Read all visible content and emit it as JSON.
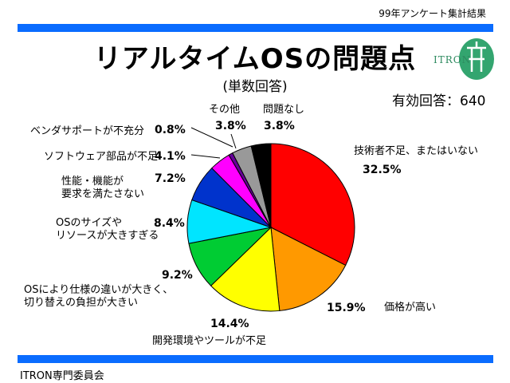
{
  "header_note": "99年アンケート集計結果",
  "title": "リアルタイムOSの問題点",
  "subtitle": "(単数回答)",
  "total_responses": "有効回答：640",
  "footer": "ITRON専門委員会",
  "logo_text": "ITRON",
  "colors": {
    "bars": "#0a6cff",
    "logo": "#33a56f"
  },
  "chart_data": {
    "type": "pie",
    "title": "リアルタイムOSの問題点",
    "slices": [
      {
        "label": "技術者不足、またはいない",
        "value": 32.5,
        "display": "32.5%",
        "color": "#ff0000"
      },
      {
        "label": "価格が高い",
        "value": 15.9,
        "display": "15.9%",
        "color": "#ff9900"
      },
      {
        "label": "開発環境やツールが不足",
        "value": 14.4,
        "display": "14.4%",
        "color": "#ffff00"
      },
      {
        "label": "OSにより仕様の違いが大きく、切り替えの負担が大きい",
        "value": 9.2,
        "display": "9.2%",
        "color": "#00cc33"
      },
      {
        "label": "OSのサイズやリソースが大きすぎる",
        "value": 8.4,
        "display": "8.4%",
        "color": "#00e5ff"
      },
      {
        "label": "性能・機能が要求を満たさない",
        "value": 7.2,
        "display": "7.2%",
        "color": "#0033cc"
      },
      {
        "label": "ソフトウェア部品が不足",
        "value": 4.1,
        "display": "4.1%",
        "color": "#ff00ff"
      },
      {
        "label": "ベンダサポートが不充分",
        "value": 0.8,
        "display": "0.8%",
        "color": "#660099"
      },
      {
        "label": "その他",
        "value": 3.8,
        "display": "3.8%",
        "color": "#999999"
      },
      {
        "label": "問題なし",
        "value": 3.8,
        "display": "3.8%",
        "color": "#000000"
      }
    ],
    "label_lines": {
      "tech": [
        "技術者不足、またはいない"
      ],
      "price": [
        "価格が高い"
      ],
      "tools": [
        "開発環境やツールが不足"
      ],
      "spec": [
        "OSにより仕様の違いが大きく、",
        "切り替えの負担が大きい"
      ],
      "size": [
        "OSのサイズや",
        "リソースが大きすぎる"
      ],
      "perf": [
        "性能・機能が",
        "要求を満たさない"
      ],
      "parts": [
        "ソフトウェア部品が不足"
      ],
      "vendor": [
        "ベンダサポートが不充分"
      ],
      "other": [
        "その他"
      ],
      "none": [
        "問題なし"
      ]
    }
  }
}
